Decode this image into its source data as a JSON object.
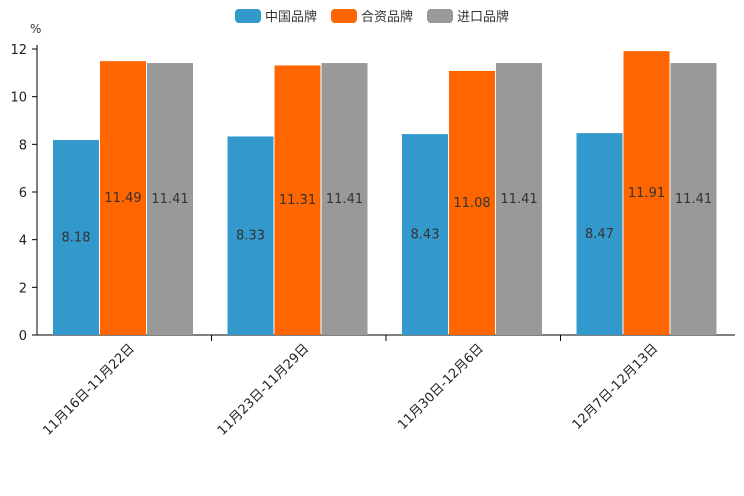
{
  "chart_data": {
    "type": "bar",
    "unit_label": "%",
    "categories": [
      "11月16日-11月22日",
      "11月23日-11月29日",
      "11月30日-12月6日",
      "12月7日-12月13日"
    ],
    "series": [
      {
        "name": "中国品牌",
        "color": "#3399cc",
        "values": [
          8.18,
          8.33,
          8.43,
          8.47
        ]
      },
      {
        "name": "合资品牌",
        "color": "#ff6600",
        "values": [
          11.49,
          11.31,
          11.08,
          11.91
        ]
      },
      {
        "name": "进口品牌",
        "color": "#999999",
        "values": [
          11.41,
          11.41,
          11.41,
          11.41
        ]
      }
    ],
    "ylim": [
      0,
      12
    ],
    "yticks": [
      0,
      2,
      4,
      6,
      8,
      10,
      12
    ],
    "legend_position": "top-center",
    "grid": false
  }
}
